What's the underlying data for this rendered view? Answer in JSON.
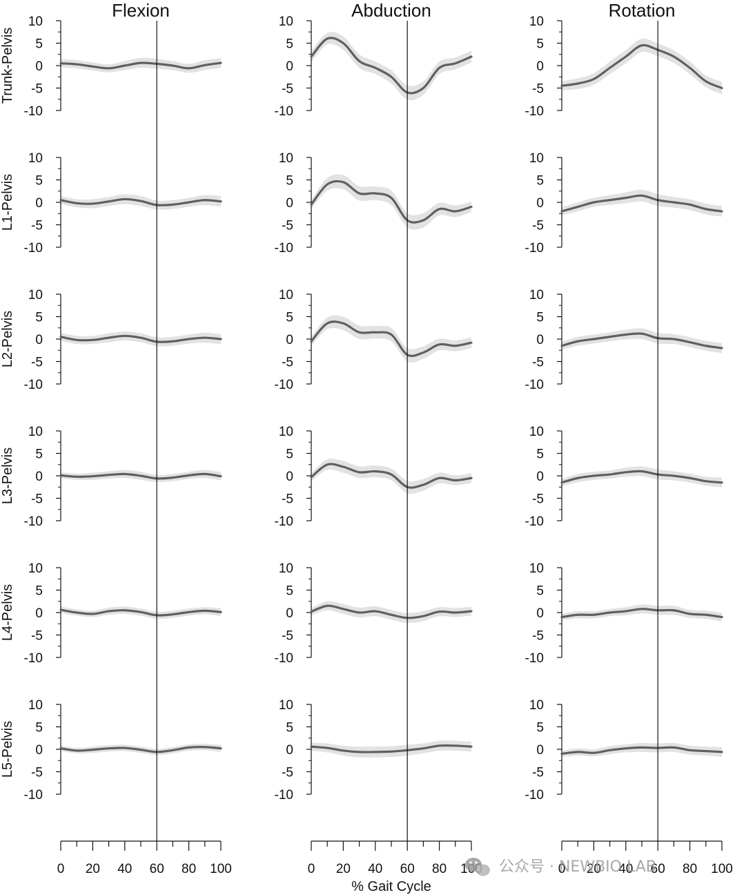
{
  "chart_data": {
    "type": "line",
    "columns": [
      "Flexion",
      "Abduction",
      "Rotation"
    ],
    "rows": [
      "Trunk-Pelvis",
      "L1-Pelvis",
      "L2-Pelvis",
      "L3-Pelvis",
      "L4-Pelvis",
      "L5-Pelvis"
    ],
    "x": [
      0,
      10,
      20,
      30,
      40,
      50,
      60,
      70,
      80,
      90,
      100
    ],
    "xlabel": "% Gait Cycle",
    "xticks": [
      "0",
      "20",
      "40",
      "60",
      "80",
      "100"
    ],
    "yticks": [
      "10",
      "5",
      "0",
      "-5",
      "-10"
    ],
    "ylim": [
      -10,
      10
    ],
    "xlim": [
      0,
      100
    ],
    "vertical_line_x": 60,
    "line_color": "#5f5f5f",
    "band_color": "#e2e2e2",
    "panels": [
      {
        "row": "Trunk-Pelvis",
        "column": "Flexion",
        "mean": [
          0.5,
          0.3,
          -0.2,
          -0.6,
          0.0,
          0.6,
          0.4,
          0.0,
          -0.6,
          0.1,
          0.6
        ],
        "sd": [
          0.9,
          0.9,
          0.9,
          0.9,
          1.0,
          1.1,
          1.1,
          1.0,
          1.0,
          1.1,
          1.1
        ]
      },
      {
        "row": "Trunk-Pelvis",
        "column": "Abduction",
        "mean": [
          2.0,
          6.0,
          5.0,
          1.0,
          -0.5,
          -2.5,
          -6.0,
          -5.0,
          -0.5,
          0.5,
          2.0
        ],
        "sd": [
          1.2,
          1.3,
          1.5,
          1.5,
          1.4,
          1.5,
          1.6,
          1.5,
          1.4,
          1.3,
          1.3
        ]
      },
      {
        "row": "Trunk-Pelvis",
        "column": "Rotation",
        "mean": [
          -4.5,
          -4.0,
          -3.0,
          -0.5,
          2.0,
          4.5,
          3.5,
          2.0,
          -0.5,
          -3.5,
          -5.0
        ],
        "sd": [
          1.0,
          1.2,
          1.3,
          1.4,
          1.5,
          1.5,
          1.4,
          1.4,
          1.4,
          1.3,
          1.4
        ]
      },
      {
        "row": "L1-Pelvis",
        "column": "Flexion",
        "mean": [
          0.5,
          -0.2,
          -0.3,
          0.2,
          0.7,
          0.3,
          -0.6,
          -0.5,
          0.0,
          0.5,
          0.2
        ],
        "sd": [
          0.9,
          0.9,
          1.0,
          1.0,
          1.1,
          1.1,
          1.0,
          1.0,
          1.0,
          1.1,
          1.2
        ]
      },
      {
        "row": "L1-Pelvis",
        "column": "Abduction",
        "mean": [
          -0.5,
          4.0,
          4.5,
          2.0,
          2.0,
          1.0,
          -4.0,
          -4.0,
          -1.5,
          -2.0,
          -1.0
        ],
        "sd": [
          1.0,
          1.4,
          1.6,
          1.6,
          1.5,
          1.6,
          1.6,
          1.6,
          1.4,
          1.3,
          1.2
        ]
      },
      {
        "row": "L1-Pelvis",
        "column": "Rotation",
        "mean": [
          -2.0,
          -1.0,
          0.0,
          0.5,
          1.0,
          1.5,
          0.5,
          0.0,
          -0.5,
          -1.5,
          -2.0
        ],
        "sd": [
          0.9,
          1.0,
          1.0,
          1.1,
          1.2,
          1.3,
          1.3,
          1.2,
          1.2,
          1.2,
          1.2
        ]
      },
      {
        "row": "L2-Pelvis",
        "column": "Flexion",
        "mean": [
          0.5,
          -0.2,
          -0.2,
          0.3,
          0.7,
          0.3,
          -0.6,
          -0.5,
          0.0,
          0.3,
          0.0
        ],
        "sd": [
          0.9,
          0.9,
          0.9,
          1.0,
          1.0,
          1.0,
          1.0,
          1.0,
          1.0,
          1.1,
          1.1
        ]
      },
      {
        "row": "L2-Pelvis",
        "column": "Abduction",
        "mean": [
          -0.5,
          3.5,
          3.5,
          1.5,
          1.5,
          1.0,
          -3.5,
          -3.0,
          -1.2,
          -1.5,
          -0.8
        ],
        "sd": [
          1.0,
          1.3,
          1.5,
          1.5,
          1.4,
          1.5,
          1.5,
          1.4,
          1.3,
          1.2,
          1.2
        ]
      },
      {
        "row": "L2-Pelvis",
        "column": "Rotation",
        "mean": [
          -1.5,
          -0.5,
          0.0,
          0.5,
          1.0,
          1.2,
          0.2,
          0.0,
          -0.7,
          -1.5,
          -2.0
        ],
        "sd": [
          0.9,
          1.0,
          1.0,
          1.0,
          1.1,
          1.2,
          1.2,
          1.1,
          1.1,
          1.1,
          1.1
        ]
      },
      {
        "row": "L3-Pelvis",
        "column": "Flexion",
        "mean": [
          0.1,
          -0.2,
          -0.1,
          0.2,
          0.4,
          0.0,
          -0.6,
          -0.4,
          0.1,
          0.4,
          -0.1
        ],
        "sd": [
          0.7,
          0.7,
          0.8,
          0.8,
          0.9,
          0.9,
          0.8,
          0.8,
          0.8,
          0.9,
          0.9
        ]
      },
      {
        "row": "L3-Pelvis",
        "column": "Abduction",
        "mean": [
          -0.3,
          2.5,
          2.0,
          0.8,
          1.0,
          0.3,
          -2.5,
          -2.0,
          -0.5,
          -1.0,
          -0.5
        ],
        "sd": [
          0.9,
          1.2,
          1.3,
          1.3,
          1.3,
          1.3,
          1.4,
          1.3,
          1.2,
          1.1,
          1.1
        ]
      },
      {
        "row": "L3-Pelvis",
        "column": "Rotation",
        "mean": [
          -1.5,
          -0.5,
          0.0,
          0.3,
          0.8,
          1.0,
          0.3,
          0.0,
          -0.5,
          -1.2,
          -1.5
        ],
        "sd": [
          0.8,
          0.9,
          0.9,
          0.9,
          1.0,
          1.1,
          1.1,
          1.0,
          1.0,
          1.0,
          1.1
        ]
      },
      {
        "row": "L4-Pelvis",
        "column": "Flexion",
        "mean": [
          0.6,
          0.0,
          -0.3,
          0.3,
          0.5,
          0.1,
          -0.6,
          -0.4,
          0.1,
          0.4,
          0.1
        ],
        "sd": [
          0.7,
          0.7,
          0.7,
          0.8,
          0.8,
          0.8,
          0.8,
          0.8,
          0.8,
          0.8,
          0.9
        ]
      },
      {
        "row": "L4-Pelvis",
        "column": "Abduction",
        "mean": [
          0.2,
          1.5,
          0.8,
          0.0,
          0.3,
          -0.5,
          -1.2,
          -0.8,
          0.2,
          0.0,
          0.3
        ],
        "sd": [
          0.8,
          1.0,
          1.1,
          1.1,
          1.1,
          1.1,
          1.1,
          1.1,
          1.0,
          1.0,
          1.0
        ]
      },
      {
        "row": "L4-Pelvis",
        "column": "Rotation",
        "mean": [
          -1.0,
          -0.5,
          -0.5,
          0.0,
          0.3,
          0.8,
          0.5,
          0.5,
          -0.3,
          -0.5,
          -1.0
        ],
        "sd": [
          0.7,
          0.8,
          0.8,
          0.8,
          0.9,
          1.0,
          1.0,
          1.0,
          0.9,
          0.9,
          1.0
        ]
      },
      {
        "row": "L5-Pelvis",
        "column": "Flexion",
        "mean": [
          0.2,
          -0.3,
          -0.1,
          0.2,
          0.3,
          -0.1,
          -0.6,
          -0.2,
          0.4,
          0.5,
          0.2
        ],
        "sd": [
          0.6,
          0.6,
          0.7,
          0.7,
          0.7,
          0.7,
          0.7,
          0.7,
          0.7,
          0.7,
          0.8
        ]
      },
      {
        "row": "L5-Pelvis",
        "column": "Abduction",
        "mean": [
          0.6,
          0.3,
          -0.3,
          -0.6,
          -0.6,
          -0.5,
          -0.2,
          0.2,
          0.8,
          0.8,
          0.6
        ],
        "sd": [
          0.9,
          1.0,
          1.1,
          1.2,
          1.2,
          1.2,
          1.2,
          1.1,
          1.1,
          1.1,
          1.1
        ]
      },
      {
        "row": "L5-Pelvis",
        "column": "Rotation",
        "mean": [
          -1.0,
          -0.6,
          -0.8,
          -0.2,
          0.2,
          0.4,
          0.3,
          0.4,
          -0.2,
          -0.4,
          -0.6
        ],
        "sd": [
          0.7,
          0.8,
          0.8,
          0.9,
          0.9,
          1.0,
          1.0,
          1.0,
          1.0,
          1.0,
          1.1
        ]
      }
    ]
  },
  "watermark": {
    "text": "公众号 · NEWBIO LAB",
    "icon": "wechat-icon"
  }
}
